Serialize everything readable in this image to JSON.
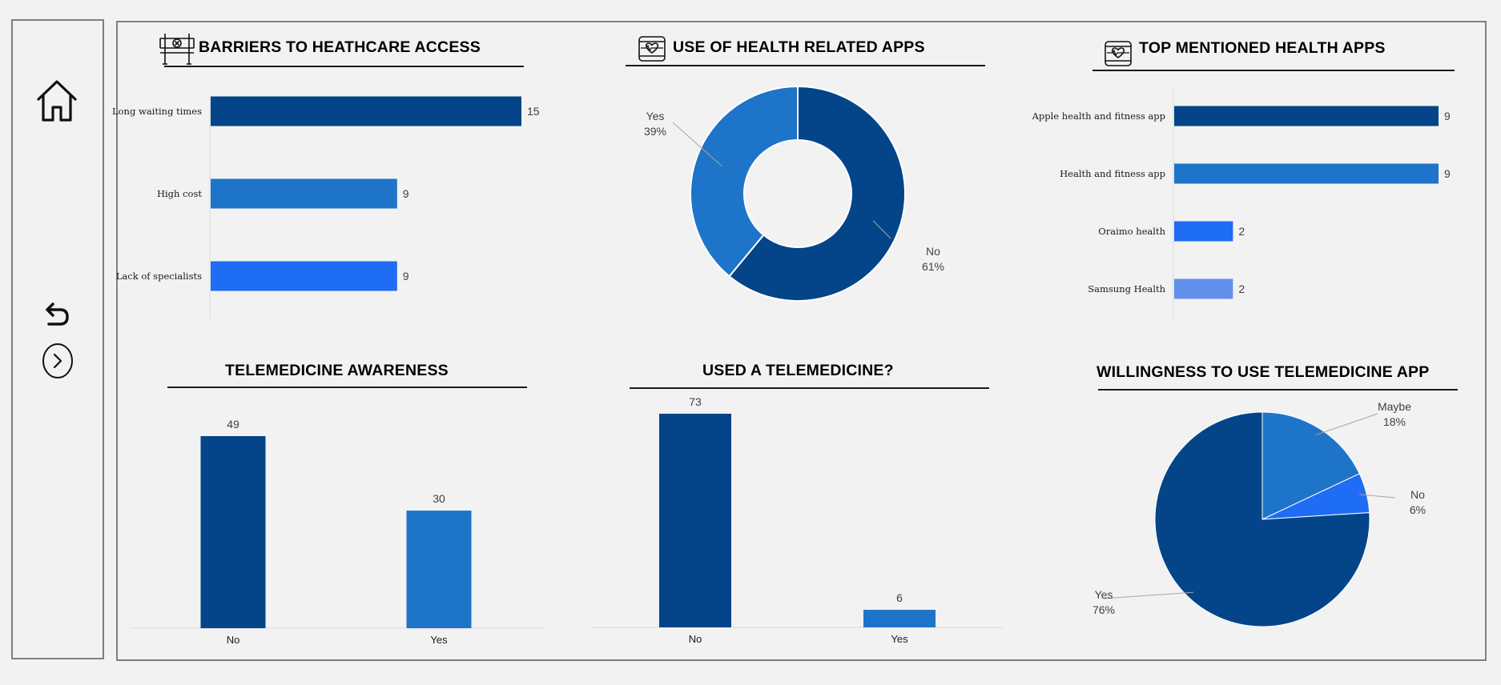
{
  "colors": {
    "dark_blue": "#034588",
    "mid_blue": "#1e74c8",
    "bright_blue": "#1f6cf5",
    "light_blue": "#6190ec",
    "border": "#7f7f7f"
  },
  "sidebar": {
    "icons": [
      "home-icon",
      "undo-icon",
      "next-icon"
    ]
  },
  "panels": {
    "barriers": {
      "title": "BARRIERS TO HEATHCARE ACCESS",
      "icon": "barrier-icon"
    },
    "apps_use": {
      "title": "USE OF HEALTH RELATED APPS",
      "icon": "tablet-heart-icon"
    },
    "top_apps": {
      "title": "TOP MENTIONED HEALTH APPS",
      "icon": "tablet-heart-icon"
    },
    "awareness": {
      "title": "TELEMEDICINE AWARENESS"
    },
    "used": {
      "title": "USED A TELEMEDICINE?"
    },
    "willingness": {
      "title": "WILLINGNESS TO USE TELEMEDICINE APP"
    }
  },
  "chart_data": [
    {
      "id": "barriers",
      "type": "bar",
      "orientation": "horizontal",
      "categories": [
        "Long waiting times",
        "High cost",
        "Lack of specialists"
      ],
      "values": [
        15,
        9,
        9
      ],
      "colors": [
        "#034588",
        "#1e74c8",
        "#1f6cf5"
      ],
      "xlim": [
        0,
        15
      ],
      "data_labels": [
        "15",
        "9",
        "9"
      ]
    },
    {
      "id": "apps_use",
      "type": "pie",
      "donut": true,
      "categories": [
        "No",
        "Yes"
      ],
      "values": [
        61,
        39
      ],
      "labels": [
        "61%",
        "39%"
      ],
      "colors": [
        "#034588",
        "#1e74c8"
      ]
    },
    {
      "id": "top_apps",
      "type": "bar",
      "orientation": "horizontal",
      "categories": [
        "Apple health and fitness app",
        "Health and fitness app",
        "Oraimo health",
        "Samsung Health"
      ],
      "values": [
        9,
        9,
        2,
        2
      ],
      "colors": [
        "#034588",
        "#1e74c8",
        "#1f6cf5",
        "#6190ec"
      ],
      "xlim": [
        0,
        9
      ],
      "data_labels": [
        "9",
        "9",
        "2",
        "2"
      ]
    },
    {
      "id": "awareness",
      "type": "bar",
      "orientation": "vertical",
      "categories": [
        "No",
        "Yes"
      ],
      "values": [
        49,
        30
      ],
      "colors": [
        "#034588",
        "#1e74c8"
      ],
      "ylim": [
        0,
        49
      ],
      "data_labels": [
        "49",
        "30"
      ]
    },
    {
      "id": "used",
      "type": "bar",
      "orientation": "vertical",
      "categories": [
        "No",
        "Yes"
      ],
      "values": [
        73,
        6
      ],
      "colors": [
        "#034588",
        "#1e74c8"
      ],
      "ylim": [
        0,
        73
      ],
      "data_labels": [
        "73",
        "6"
      ]
    },
    {
      "id": "willingness",
      "type": "pie",
      "donut": false,
      "categories": [
        "Maybe",
        "No",
        "Yes"
      ],
      "values": [
        18,
        6,
        76
      ],
      "labels": [
        "18%",
        "6%",
        "76%"
      ],
      "colors": [
        "#1e74c8",
        "#1f6cf5",
        "#034588"
      ]
    }
  ]
}
